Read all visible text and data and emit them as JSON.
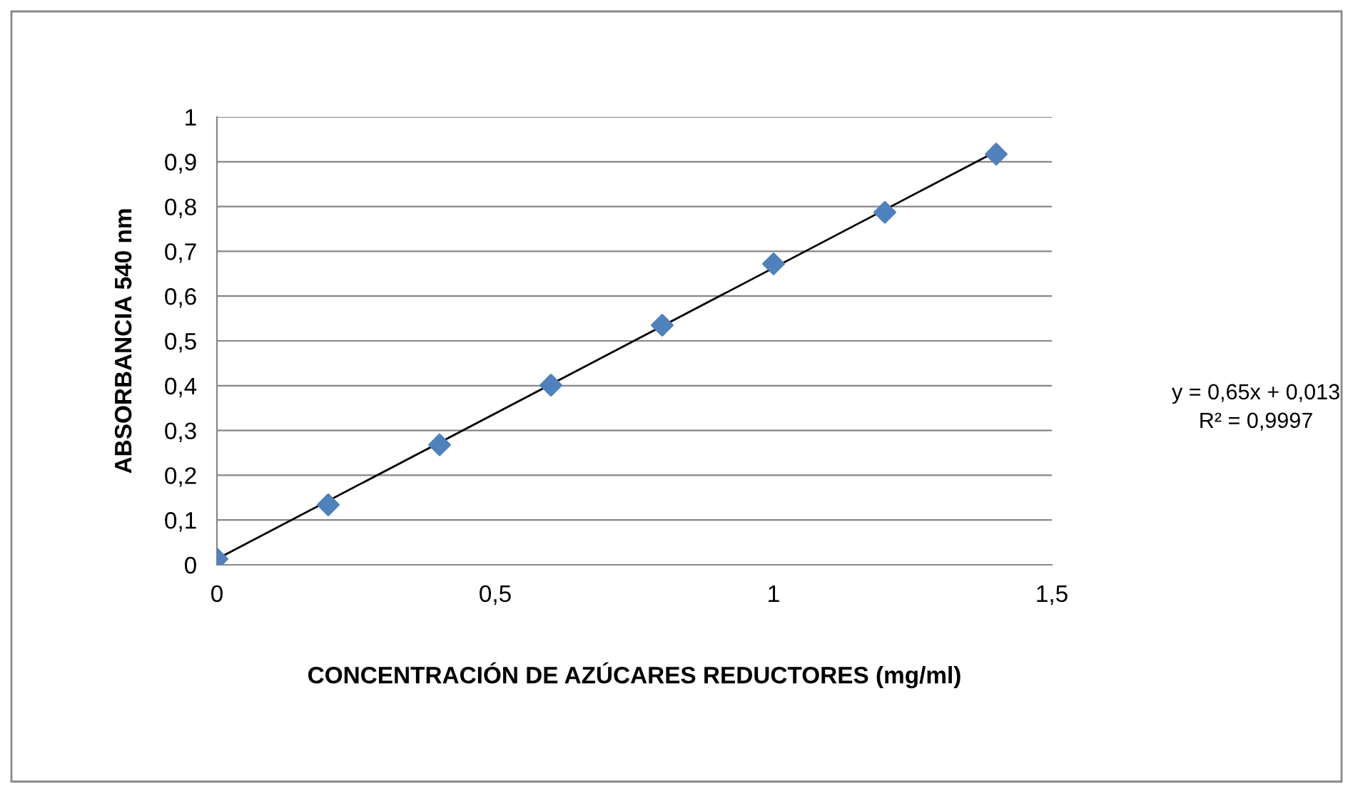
{
  "chart_data": {
    "type": "scatter",
    "xlabel": "CONCENTRACIÓN DE AZÚCARES REDUCTORES (mg/ml)",
    "ylabel": "ABSORBANCIA 540 nm",
    "x": [
      0,
      0.2,
      0.4,
      0.6,
      0.8,
      1.0,
      1.2,
      1.4
    ],
    "series": [
      {
        "color": "#4f81bd",
        "marker": "diamond",
        "values": [
          0.013,
          0.134,
          0.268,
          0.401,
          0.535,
          0.672,
          0.787,
          0.917
        ]
      },
      {
        "type": "line",
        "color": "#000000",
        "marker": "none",
        "line_style": "solid",
        "x": [
          0,
          1.4
        ],
        "values": [
          0.013,
          0.923
        ]
      }
    ],
    "xlim": [
      0,
      1.5
    ],
    "xticks": [
      0,
      {
        "value": 0.5,
        "label": "0,5"
      },
      1,
      {
        "value": 1.5,
        "label": "1,5"
      }
    ],
    "ylim": [
      0,
      1
    ],
    "yticks": [
      0,
      {
        "value": 0.1,
        "label": "0,1"
      },
      {
        "value": 0.2,
        "label": "0,2"
      },
      {
        "value": 0.3,
        "label": "0,3"
      },
      {
        "value": 0.4,
        "label": "0,4"
      },
      {
        "value": 0.5,
        "label": "0,5"
      },
      {
        "value": 0.6,
        "label": "0,6"
      },
      {
        "value": 0.7,
        "label": "0,7"
      },
      {
        "value": 0.8,
        "label": "0,8"
      },
      {
        "value": 0.9,
        "label": "0,9"
      },
      1
    ],
    "grid": "y",
    "legend": false,
    "annotations": [
      "y = 0,65x + 0,013",
      "R² = 0,9997"
    ]
  }
}
